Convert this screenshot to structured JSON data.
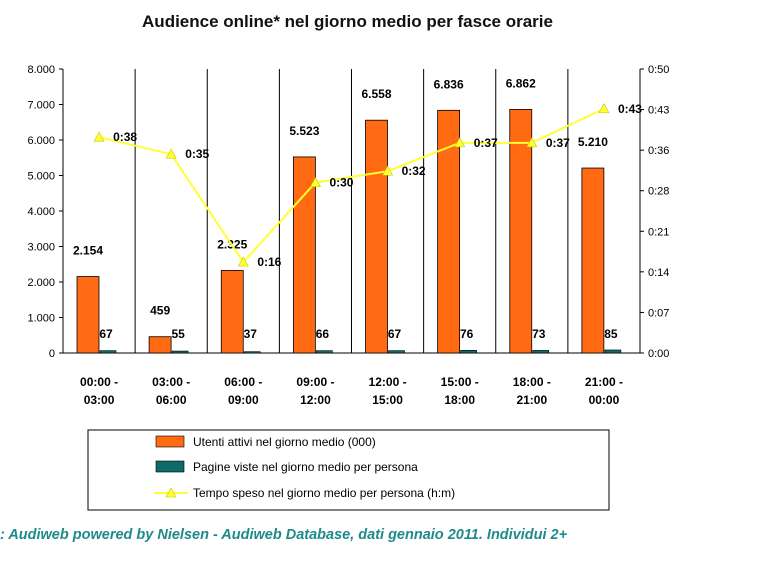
{
  "chart_data": {
    "type": "bar",
    "title": "Audience online* nel giorno medio per fasce orarie",
    "categories": [
      [
        "00:00 -",
        "03:00"
      ],
      [
        "03:00 -",
        "06:00"
      ],
      [
        "06:00 -",
        "09:00"
      ],
      [
        "09:00 -",
        "12:00"
      ],
      [
        "12:00 -",
        "15:00"
      ],
      [
        "15:00 -",
        "18:00"
      ],
      [
        "18:00 -",
        "21:00"
      ],
      [
        "21:00 -",
        "00:00"
      ]
    ],
    "series": [
      {
        "name": "Utenti attivi nel giorno medio (000)",
        "axis": "left",
        "kind": "bar",
        "color": "#ff6a13",
        "values": [
          2154,
          459,
          2325,
          5523,
          6558,
          6836,
          6862,
          5210
        ],
        "labels": [
          "2.154",
          "459",
          "2.325",
          "5.523",
          "6.558",
          "6.836",
          "6.862",
          "5.210"
        ]
      },
      {
        "name": "Pagine viste nel giorno medio per persona",
        "axis": "left",
        "kind": "bar",
        "color": "#0f6a6a",
        "values": [
          67,
          55,
          37,
          66,
          67,
          76,
          73,
          85
        ],
        "labels": [
          "67",
          "55",
          "37",
          "66",
          "67",
          "76",
          "73",
          "85"
        ]
      },
      {
        "name": "Tempo speso nel giorno medio per persona (h:m)",
        "axis": "right",
        "kind": "line",
        "color": "#ffff33",
        "values_minutes": [
          38,
          35,
          16,
          30,
          32,
          37,
          37,
          43
        ],
        "labels": [
          "0:38",
          "0:35",
          "0:16",
          "0:30",
          "0:32",
          "0:37",
          "0:37",
          "0:43"
        ]
      }
    ],
    "y_left": {
      "min": 0,
      "max": 8000,
      "ticks": [
        0,
        1000,
        2000,
        3000,
        4000,
        5000,
        6000,
        7000,
        8000
      ],
      "tick_labels": [
        "0",
        "1.000",
        "2.000",
        "3.000",
        "4.000",
        "5.000",
        "6.000",
        "7.000",
        "8.000"
      ]
    },
    "y_right": {
      "min_minutes": 0,
      "max_minutes": 50,
      "ticks_minutes": [
        0,
        7.14,
        14.29,
        21.43,
        28.57,
        35.71,
        42.86,
        50
      ],
      "tick_labels": [
        "0:00",
        "0:07",
        "0:14",
        "0:21",
        "0:28",
        "0:36",
        "0:43",
        "0:50"
      ]
    },
    "legend_position": "bottom"
  },
  "source": ": Audiweb powered by Nielsen - Audiweb Database, dati gennaio 2011. Individui 2+"
}
